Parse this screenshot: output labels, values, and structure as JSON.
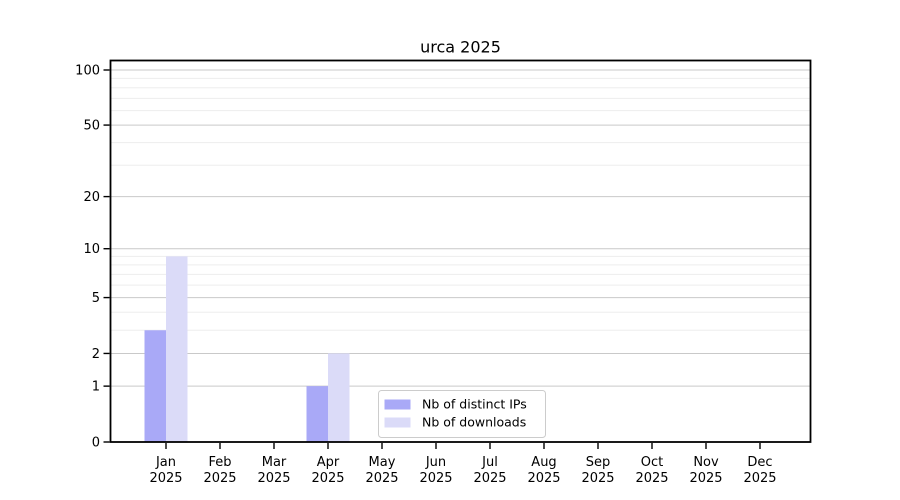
{
  "chart_data": {
    "type": "bar",
    "title": "urca 2025",
    "yscale": "log1p",
    "categories": [
      "Jan",
      "Feb",
      "Mar",
      "Apr",
      "May",
      "Jun",
      "Jul",
      "Aug",
      "Sep",
      "Oct",
      "Nov",
      "Dec"
    ],
    "x_year_label": "2025",
    "series": [
      {
        "name": "Nb of distinct IPs",
        "color": "#a9a9f7",
        "values": [
          3,
          0,
          0,
          1,
          0,
          0,
          0,
          0,
          0,
          0,
          0,
          0
        ]
      },
      {
        "name": "Nb of downloads",
        "color": "#dbdbf8",
        "values": [
          9,
          0,
          0,
          2,
          0,
          0,
          0,
          0,
          0,
          0,
          0,
          0
        ]
      }
    ],
    "y_major_ticks": [
      0,
      1,
      2,
      5,
      10,
      20,
      50,
      100
    ],
    "y_minor_gridlines": [
      3,
      4,
      6,
      7,
      8,
      9,
      30,
      40,
      60,
      70,
      80,
      90
    ],
    "ylim": [
      0,
      113
    ],
    "grid": "on",
    "legend": {
      "position": "lower center",
      "entries": [
        "Nb of distinct IPs",
        "Nb of downloads"
      ]
    },
    "colors": {
      "axis": "#000000",
      "major_grid": "#c9c9c9",
      "minor_grid": "#ededed",
      "legend_border": "#cccccc",
      "background": "#ffffff",
      "text": "#000000"
    }
  }
}
